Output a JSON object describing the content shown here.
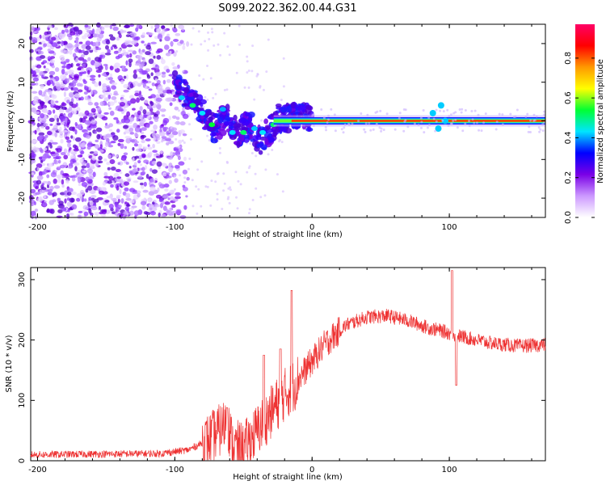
{
  "title": "S099.2022.362.00.44.G31",
  "chart_data": [
    {
      "type": "heatmap",
      "name": "spectrogram",
      "xlabel": "Height of straight line (km)",
      "ylabel": "Frequency (Hz)",
      "xlim": [
        -205,
        170
      ],
      "ylim": [
        -25,
        25
      ],
      "xticks": [
        -200,
        -100,
        0,
        100
      ],
      "yticks": [
        -20,
        -10,
        0,
        10,
        20
      ],
      "colorbar": {
        "label": "Normalized spectral amplitude",
        "range": [
          0,
          0.97
        ],
        "ticks": [
          "0.0",
          "0.2",
          "0.4",
          "0.6",
          "0.8"
        ],
        "colors": [
          "#ffffff",
          "#cc99ff",
          "#7a00e6",
          "#0000ff",
          "#00e5ff",
          "#00ff33",
          "#ffff00",
          "#ff9900",
          "#ff0000",
          "#ff0066"
        ]
      },
      "ridge": [
        {
          "x": -100,
          "f": 10
        },
        {
          "x": -90,
          "f": 6
        },
        {
          "x": -80,
          "f": 2
        },
        {
          "x": -72,
          "f": -2
        },
        {
          "x": -62,
          "f": 1
        },
        {
          "x": -55,
          "f": -3
        },
        {
          "x": -45,
          "f": -1
        },
        {
          "x": -38,
          "f": -5
        },
        {
          "x": -30,
          "f": -2
        },
        {
          "x": -25,
          "f": 0.5
        },
        {
          "x": -15,
          "f": 1
        },
        {
          "x": 0,
          "f": 1
        },
        {
          "x": 10,
          "f": 0
        },
        {
          "x": 170,
          "f": 0
        }
      ]
    },
    {
      "type": "line",
      "name": "snr",
      "xlabel": "Height of straight line (km)",
      "ylabel": "SNR (10 * v/v)",
      "xlim": [
        -205,
        170
      ],
      "ylim": [
        0,
        320
      ],
      "xticks": [
        -200,
        -100,
        0,
        100
      ],
      "yticks": [
        0,
        100,
        200,
        300
      ],
      "color": "#ee3333",
      "trend": [
        {
          "x": -205,
          "y": 10
        },
        {
          "x": -110,
          "y": 12
        },
        {
          "x": -90,
          "y": 18
        },
        {
          "x": -75,
          "y": 35
        },
        {
          "x": -65,
          "y": 55
        },
        {
          "x": -62,
          "y": 70
        },
        {
          "x": -58,
          "y": 25
        },
        {
          "x": -50,
          "y": 20
        },
        {
          "x": -40,
          "y": 50
        },
        {
          "x": -30,
          "y": 80
        },
        {
          "x": -20,
          "y": 110
        },
        {
          "x": -15,
          "y": 120
        },
        {
          "x": -5,
          "y": 150
        },
        {
          "x": 10,
          "y": 195
        },
        {
          "x": 25,
          "y": 225
        },
        {
          "x": 40,
          "y": 238
        },
        {
          "x": 55,
          "y": 240
        },
        {
          "x": 70,
          "y": 232
        },
        {
          "x": 85,
          "y": 220
        },
        {
          "x": 95,
          "y": 215
        },
        {
          "x": 102,
          "y": 210
        },
        {
          "x": 110,
          "y": 205
        },
        {
          "x": 130,
          "y": 195
        },
        {
          "x": 150,
          "y": 190
        },
        {
          "x": 170,
          "y": 192
        }
      ],
      "peaks": [
        {
          "x": -62,
          "y": 88
        },
        {
          "x": -35,
          "y": 175
        },
        {
          "x": -23,
          "y": 185
        },
        {
          "x": -15,
          "y": 282
        },
        {
          "x": 102,
          "y": 315
        },
        {
          "x": 105,
          "y": 125
        }
      ]
    }
  ]
}
